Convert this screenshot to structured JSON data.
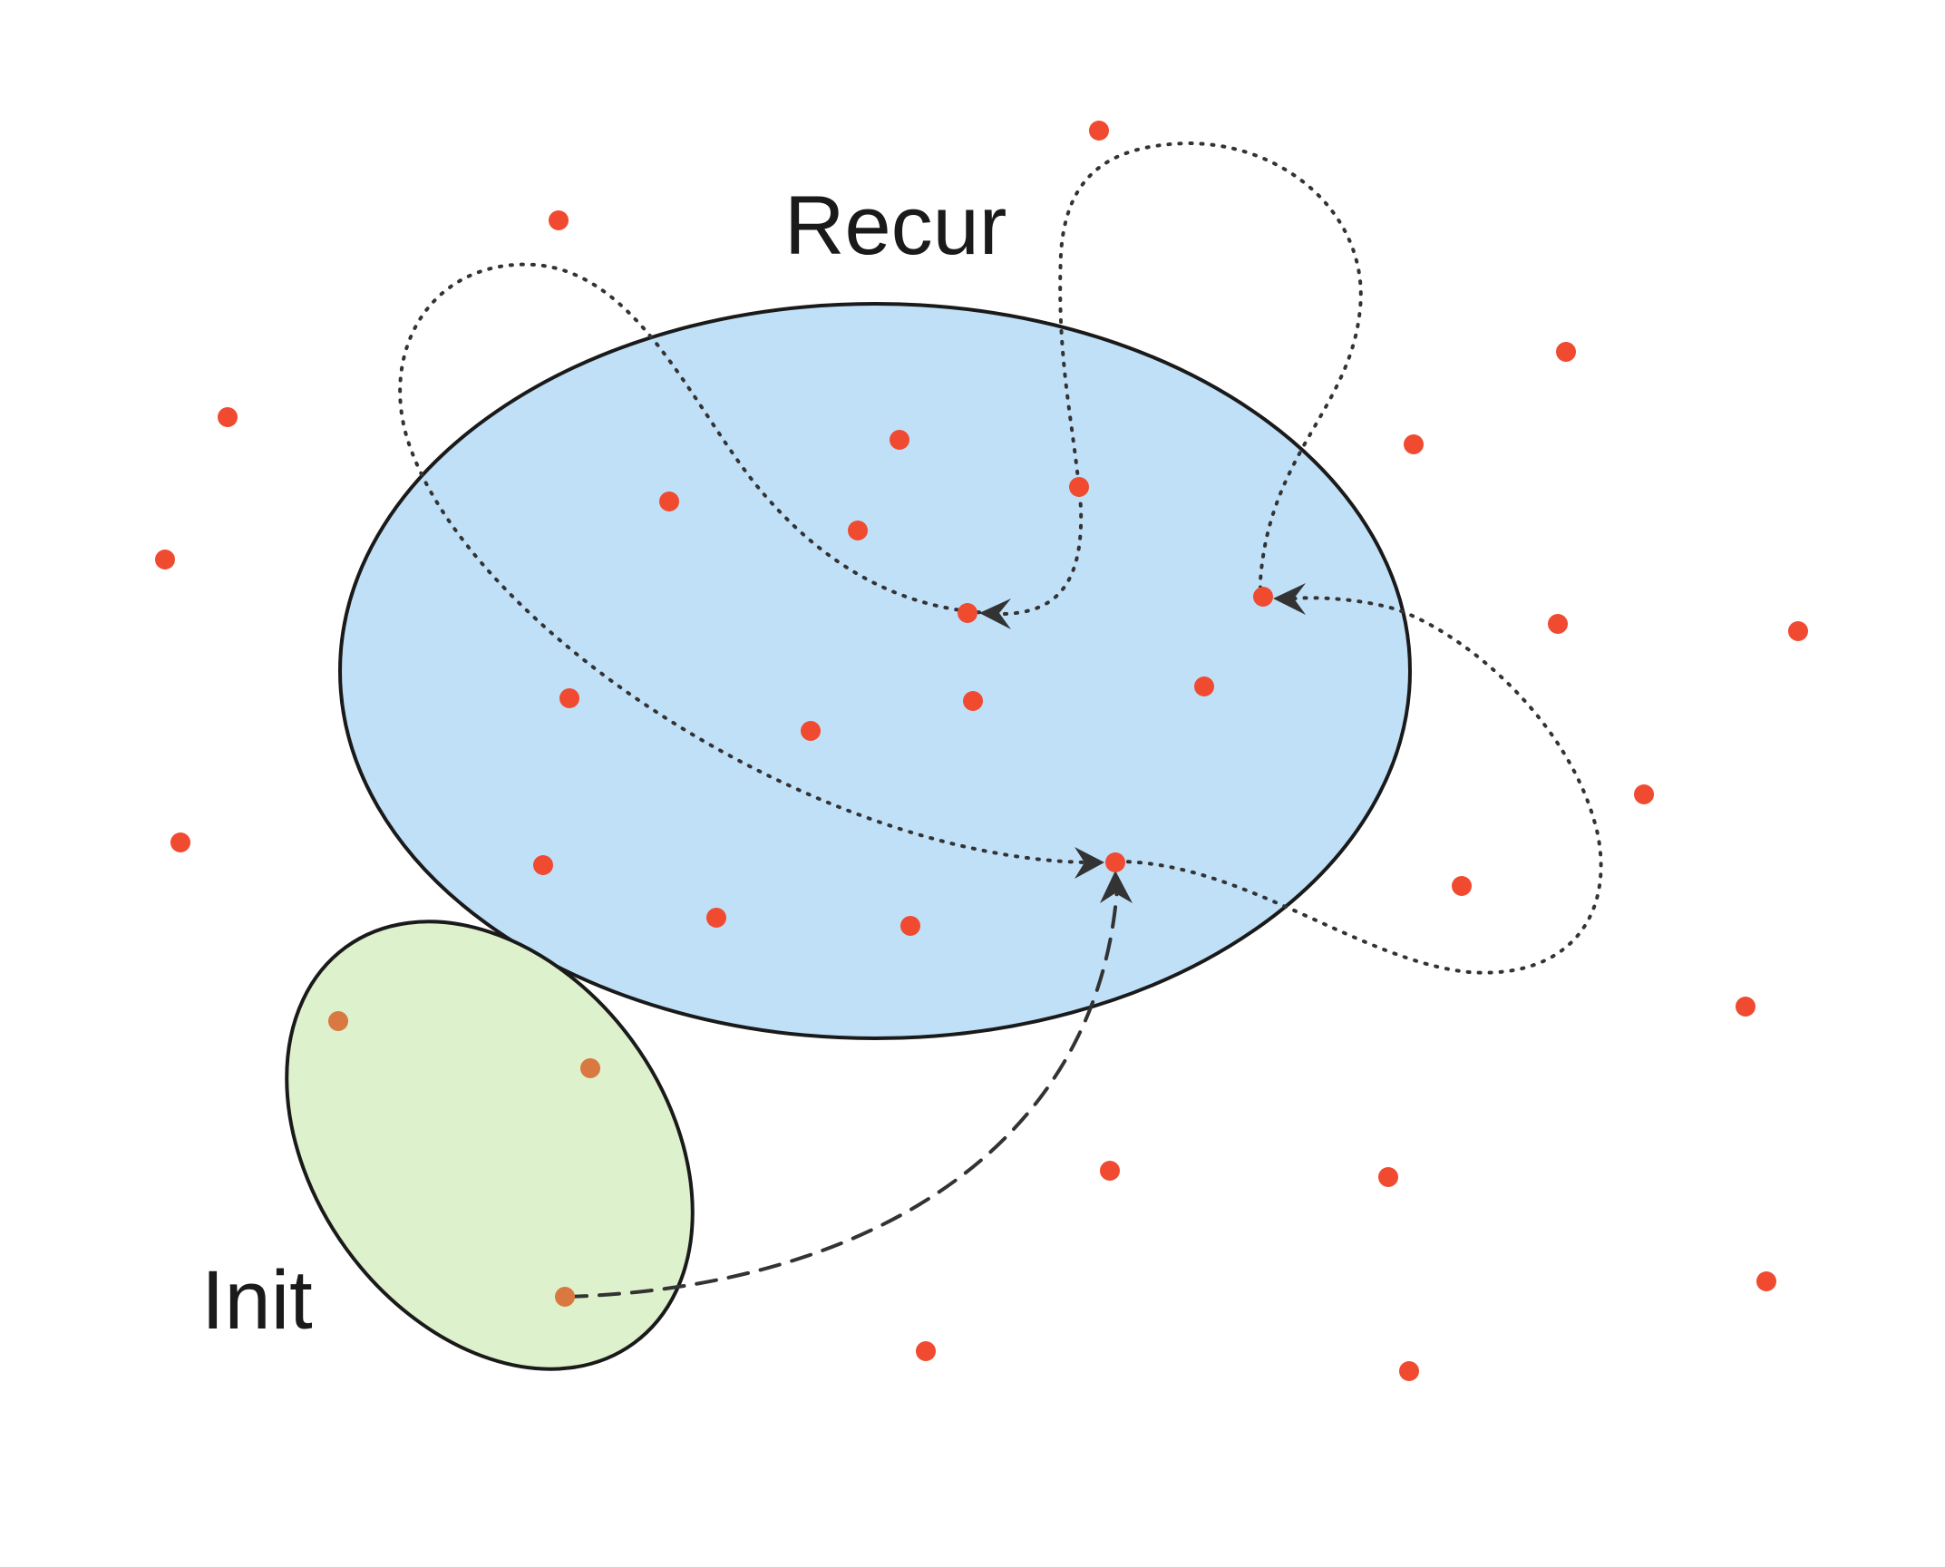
{
  "labels": {
    "recur": "Recur",
    "init": "Init"
  },
  "colors": {
    "recur_fill": "#c0e0f8",
    "init_fill": "#dcf1cc",
    "outline": "#1a1a1a",
    "state_dot": "#f04a30",
    "init_dot": "#d97840",
    "arrow": "#333333"
  }
}
